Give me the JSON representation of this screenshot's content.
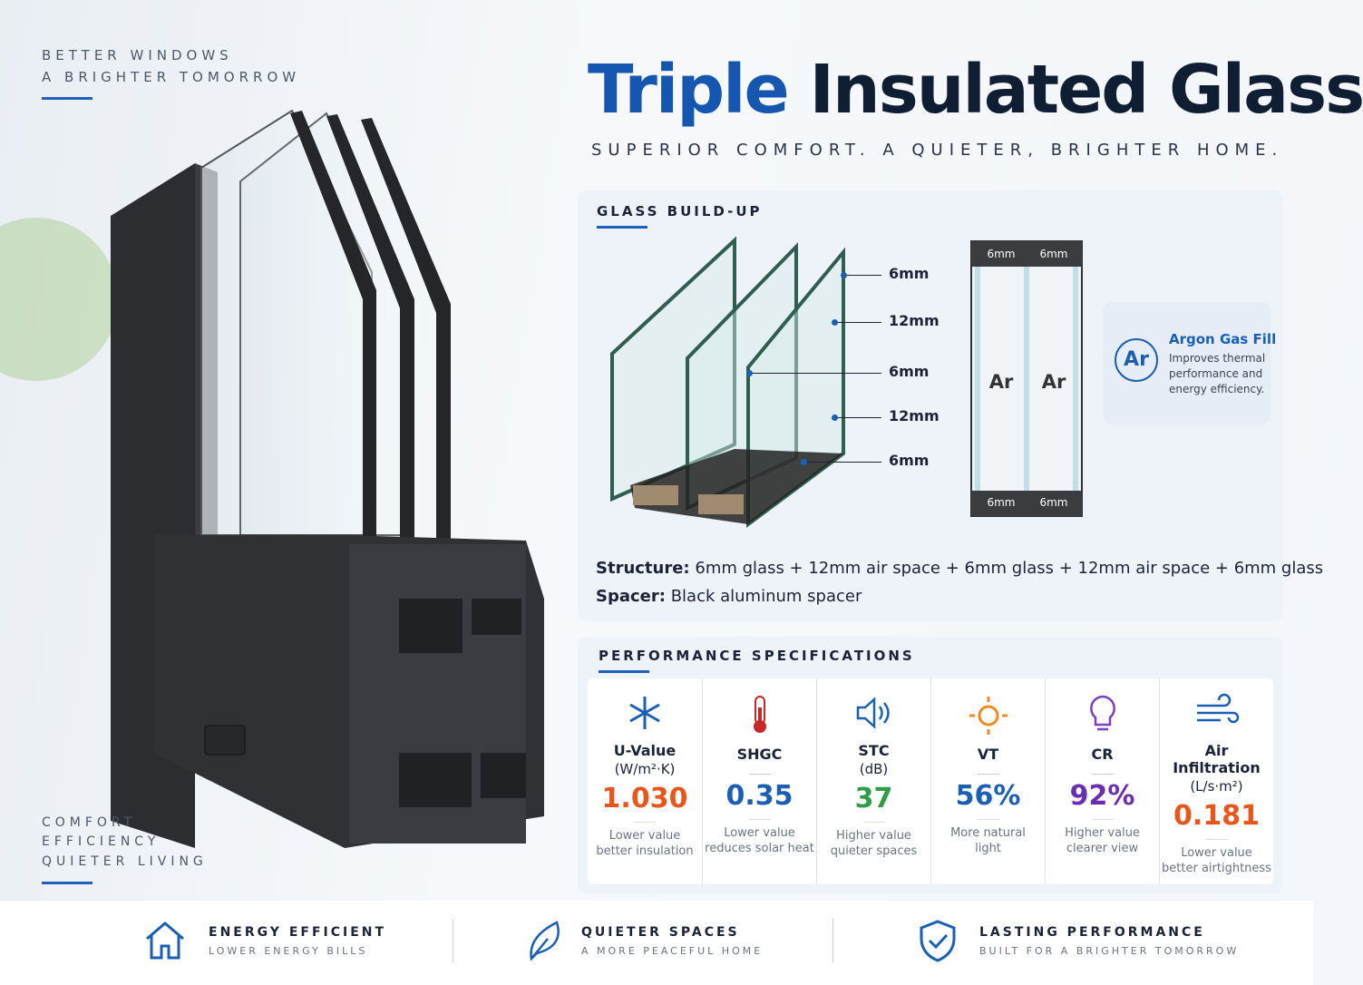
{
  "tagline": [
    "BETTER WINDOWS",
    "A BRIGHTER TOMORROW"
  ],
  "side_note": [
    "COMFORT",
    "EFFICIENCY",
    "QUIETER LIVING"
  ],
  "header": {
    "title_accent": "Triple",
    "title_rest": "Insulated Glass",
    "subtitle": "SUPERIOR COMFORT. A QUIETER, BRIGHTER HOME."
  },
  "buildup": {
    "heading": "GLASS BUILD-UP",
    "layers": [
      "6mm",
      "12mm",
      "6mm",
      "12mm",
      "6mm"
    ],
    "section_top": [
      "6mm",
      "6mm"
    ],
    "section_bottom": [
      "6mm",
      "6mm"
    ],
    "gas": [
      "Ar",
      "Ar"
    ],
    "argon": {
      "symbol": "Ar",
      "title": "Argon Gas Fill",
      "text": [
        "Improves thermal",
        "performance and",
        "energy efficiency."
      ]
    },
    "structure": {
      "label": "Structure:",
      "text": "6mm glass + 12mm air space + 6mm glass + 12mm air space + 6mm glass"
    },
    "spacer": {
      "label": "Spacer:",
      "text": "Black aluminum spacer"
    }
  },
  "performance": {
    "heading": "PERFORMANCE SPECIFICATIONS",
    "items": [
      {
        "name": "U-Value",
        "unit": "(W/m²·K)",
        "value": "1.030",
        "color": "#e8561c",
        "note": [
          "Lower value",
          "better insulation"
        ]
      },
      {
        "name": "SHGC",
        "value": "0.35",
        "color": "#1b5fb5",
        "note": [
          "Lower value",
          "reduces solar heat"
        ]
      },
      {
        "name": "STC",
        "unit": "(dB)",
        "value": "37",
        "color": "#2f9d48",
        "note": [
          "Higher value",
          "quieter spaces"
        ]
      },
      {
        "name": "VT",
        "value": "56%",
        "color": "#1b5fb5",
        "note": [
          "More natural",
          "light"
        ]
      },
      {
        "name": "CR",
        "value": "92%",
        "color": "#6a2eb3",
        "note": [
          "Higher value",
          "clearer view"
        ]
      },
      {
        "name": "Air Infiltration",
        "unit": "(L/s·m²)",
        "value": "0.181",
        "color": "#e8561c",
        "note": [
          "Lower value",
          "better airtightness"
        ]
      }
    ]
  },
  "features": [
    {
      "title": "ENERGY EFFICIENT",
      "subtitle": "LOWER ENERGY BILLS"
    },
    {
      "title": "QUIETER SPACES",
      "subtitle": "A MORE PEACEFUL HOME"
    },
    {
      "title": "LASTING PERFORMANCE",
      "subtitle": "BUILT FOR A BRIGHTER TOMORROW"
    }
  ]
}
